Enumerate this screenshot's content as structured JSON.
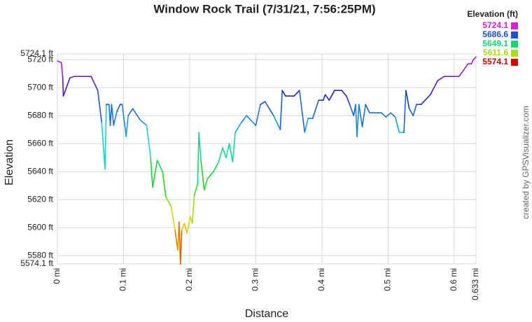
{
  "chart_data": {
    "type": "line",
    "title": "Window Rock Trail (7/31/21, 7:56:25PM)",
    "x_label": "Distance",
    "y_label": "Elevation",
    "credit": "created by GPSVisualizer.com",
    "legend_title": "Elevation (ft)",
    "legend_values": [
      5724.1,
      5686.6,
      5649.1,
      5611.6,
      5574.1
    ],
    "legend_colors": [
      "#d81ed8",
      "#1b4fd8",
      "#10d878",
      "#a8e010",
      "#d80000"
    ],
    "grid": true,
    "xlim": [
      0,
      0.633
    ],
    "ylim": [
      5574.1,
      5724.1
    ],
    "xticks": [
      {
        "value": 0,
        "label": "0 mi"
      },
      {
        "value": 0.1,
        "label": "0.1 mi"
      },
      {
        "value": 0.2,
        "label": "0.2 mi"
      },
      {
        "value": 0.3,
        "label": "0.3 mi"
      },
      {
        "value": 0.4,
        "label": "0.4 mi"
      },
      {
        "value": 0.5,
        "label": "0.5 mi"
      },
      {
        "value": 0.6,
        "label": "0.6 mi"
      },
      {
        "value": 0.633,
        "label": "0.633 mi"
      }
    ],
    "yticks": [
      {
        "value": 5574.1,
        "label": "5574.1 ft"
      },
      {
        "value": 5580,
        "label": "5580 ft"
      },
      {
        "value": 5600,
        "label": "5600 ft"
      },
      {
        "value": 5620,
        "label": "5620 ft"
      },
      {
        "value": 5640,
        "label": "5640 ft"
      },
      {
        "value": 5660,
        "label": "5660 ft"
      },
      {
        "value": 5680,
        "label": "5680 ft"
      },
      {
        "value": 5700,
        "label": "5700 ft"
      },
      {
        "value": 5720,
        "label": "5720 ft"
      },
      {
        "value": 5724.1,
        "label": "5724.1 ft"
      }
    ],
    "x": [
      0,
      0.006,
      0.008,
      0.009,
      0.019,
      0.025,
      0.051,
      0.061,
      0.067,
      0.072,
      0.074,
      0.078,
      0.08,
      0.082,
      0.085,
      0.09,
      0.095,
      0.098,
      0.104,
      0.107,
      0.114,
      0.125,
      0.135,
      0.141,
      0.144,
      0.151,
      0.159,
      0.164,
      0.172,
      0.178,
      0.182,
      0.184,
      0.186,
      0.188,
      0.192,
      0.196,
      0.201,
      0.204,
      0.207,
      0.212,
      0.214,
      0.217,
      0.222,
      0.227,
      0.236,
      0.243,
      0.25,
      0.255,
      0.26,
      0.265,
      0.269,
      0.278,
      0.286,
      0.292,
      0.3,
      0.307,
      0.314,
      0.327,
      0.337,
      0.34,
      0.345,
      0.358,
      0.366,
      0.374,
      0.379,
      0.386,
      0.395,
      0.402,
      0.405,
      0.411,
      0.419,
      0.43,
      0.437,
      0.442,
      0.448,
      0.451,
      0.453,
      0.456,
      0.461,
      0.466,
      0.472,
      0.49,
      0.497,
      0.504,
      0.511,
      0.517,
      0.524,
      0.527,
      0.532,
      0.538,
      0.543,
      0.55,
      0.564,
      0.575,
      0.585,
      0.607,
      0.612,
      0.621,
      0.626,
      0.629,
      0.633
    ],
    "values": [
      5719,
      5718,
      5708,
      5694,
      5707,
      5708,
      5708,
      5698,
      5675,
      5642,
      5688,
      5688,
      5673,
      5688,
      5673,
      5683,
      5688,
      5688,
      5665,
      5680,
      5685,
      5677,
      5673,
      5650,
      5629,
      5648,
      5640,
      5622,
      5615,
      5598,
      5584,
      5604,
      5574,
      5598,
      5603,
      5596,
      5608,
      5603,
      5623,
      5631,
      5668,
      5648,
      5627,
      5635,
      5640,
      5646,
      5657,
      5650,
      5660,
      5647,
      5668,
      5675,
      5680,
      5677,
      5673,
      5688,
      5690,
      5680,
      5670,
      5698,
      5694,
      5694,
      5698,
      5668,
      5678,
      5678,
      5691,
      5691,
      5695,
      5691,
      5698,
      5698,
      5694,
      5688,
      5680,
      5688,
      5665,
      5688,
      5672,
      5688,
      5682,
      5682,
      5679,
      5682,
      5679,
      5668,
      5668,
      5698,
      5685,
      5680,
      5688,
      5688,
      5695,
      5705,
      5708,
      5708,
      5711,
      5717,
      5717,
      5720,
      5722
    ]
  }
}
